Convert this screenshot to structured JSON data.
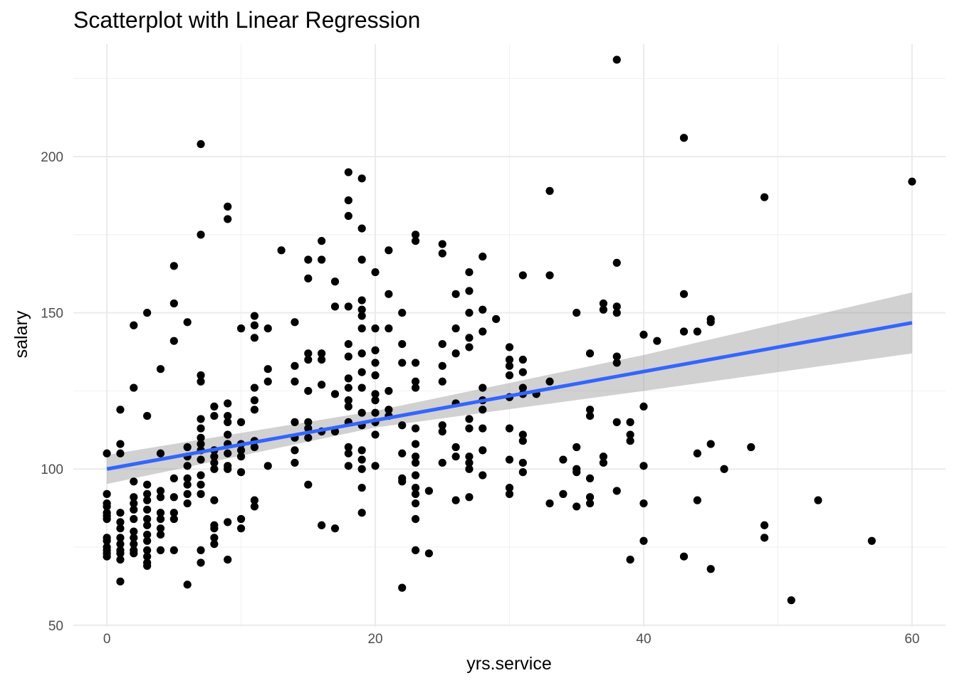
{
  "chart_data": {
    "type": "scatter",
    "title": "Scatterplot with Linear Regression",
    "xlabel": "yrs.service",
    "ylabel": "salary",
    "xlim": [
      -2.5,
      62.5
    ],
    "ylim": [
      49.5,
      236
    ],
    "x_ticks": [
      0,
      20,
      40,
      60
    ],
    "y_ticks": [
      50,
      100,
      150,
      200
    ],
    "grid": true,
    "point_color": "#000000",
    "regression": {
      "x0": 0,
      "y0": 100.0,
      "x1": 60,
      "y1": 146.8,
      "color": "#3366ff",
      "ci_band": [
        [
          0,
          95.2,
          104.5
        ],
        [
          20,
          113.3,
          118.6
        ],
        [
          40,
          125.0,
          136.5
        ],
        [
          60,
          137.0,
          156.5
        ]
      ],
      "ci_color": "#999999"
    },
    "points": [
      [
        0,
        105
      ],
      [
        0,
        92
      ],
      [
        0,
        89
      ],
      [
        0,
        88
      ],
      [
        0,
        86
      ],
      [
        0,
        85
      ],
      [
        0,
        84
      ],
      [
        0,
        78
      ],
      [
        0,
        77
      ],
      [
        0,
        75
      ],
      [
        0,
        74
      ],
      [
        0,
        73
      ],
      [
        0,
        72
      ],
      [
        1,
        119
      ],
      [
        1,
        108
      ],
      [
        1,
        105
      ],
      [
        1,
        86
      ],
      [
        1,
        83
      ],
      [
        1,
        81
      ],
      [
        1,
        78
      ],
      [
        1,
        76
      ],
      [
        1,
        74
      ],
      [
        1,
        73
      ],
      [
        1,
        71
      ],
      [
        1,
        64
      ],
      [
        2,
        146
      ],
      [
        2,
        126
      ],
      [
        2,
        96
      ],
      [
        2,
        91
      ],
      [
        2,
        89
      ],
      [
        2,
        87
      ],
      [
        2,
        84
      ],
      [
        2,
        80
      ],
      [
        2,
        78
      ],
      [
        2,
        76
      ],
      [
        2,
        74
      ],
      [
        2,
        73
      ],
      [
        3,
        150
      ],
      [
        3,
        117
      ],
      [
        3,
        95
      ],
      [
        3,
        92
      ],
      [
        3,
        90
      ],
      [
        3,
        87
      ],
      [
        3,
        84
      ],
      [
        3,
        82
      ],
      [
        3,
        79
      ],
      [
        3,
        77
      ],
      [
        3,
        74
      ],
      [
        3,
        72
      ],
      [
        3,
        70
      ],
      [
        3,
        69
      ],
      [
        4,
        132
      ],
      [
        4,
        105
      ],
      [
        4,
        93
      ],
      [
        4,
        91
      ],
      [
        4,
        86
      ],
      [
        4,
        84
      ],
      [
        4,
        81
      ],
      [
        4,
        79
      ],
      [
        4,
        74
      ],
      [
        5,
        165
      ],
      [
        5,
        153
      ],
      [
        5,
        141
      ],
      [
        5,
        97
      ],
      [
        5,
        91
      ],
      [
        5,
        86
      ],
      [
        5,
        84
      ],
      [
        5,
        74
      ],
      [
        6,
        147
      ],
      [
        6,
        107
      ],
      [
        6,
        104
      ],
      [
        6,
        101
      ],
      [
        6,
        97
      ],
      [
        6,
        95
      ],
      [
        6,
        92
      ],
      [
        6,
        89
      ],
      [
        6,
        63
      ],
      [
        7,
        204
      ],
      [
        7,
        175
      ],
      [
        7,
        130
      ],
      [
        7,
        128
      ],
      [
        7,
        116
      ],
      [
        7,
        113
      ],
      [
        7,
        110
      ],
      [
        7,
        108
      ],
      [
        7,
        106
      ],
      [
        7,
        103
      ],
      [
        7,
        98
      ],
      [
        7,
        95
      ],
      [
        7,
        92
      ],
      [
        7,
        74
      ],
      [
        7,
        70
      ],
      [
        8,
        120
      ],
      [
        8,
        117
      ],
      [
        8,
        106
      ],
      [
        8,
        104
      ],
      [
        8,
        102
      ],
      [
        8,
        100
      ],
      [
        8,
        90
      ],
      [
        8,
        82
      ],
      [
        8,
        81
      ],
      [
        8,
        78
      ],
      [
        8,
        76
      ],
      [
        9,
        184
      ],
      [
        9,
        180
      ],
      [
        9,
        121
      ],
      [
        9,
        117
      ],
      [
        9,
        115
      ],
      [
        9,
        111
      ],
      [
        9,
        108
      ],
      [
        9,
        105
      ],
      [
        9,
        101
      ],
      [
        9,
        100
      ],
      [
        9,
        83
      ],
      [
        9,
        71
      ],
      [
        10,
        145
      ],
      [
        10,
        115
      ],
      [
        10,
        108
      ],
      [
        10,
        106
      ],
      [
        10,
        104
      ],
      [
        10,
        99
      ],
      [
        10,
        84
      ],
      [
        10,
        81
      ],
      [
        11,
        149
      ],
      [
        11,
        146
      ],
      [
        11,
        142
      ],
      [
        11,
        126
      ],
      [
        11,
        122
      ],
      [
        11,
        119
      ],
      [
        11,
        109
      ],
      [
        11,
        107
      ],
      [
        11,
        90
      ],
      [
        11,
        88
      ],
      [
        12,
        145
      ],
      [
        12,
        132
      ],
      [
        12,
        128
      ],
      [
        12,
        101
      ],
      [
        13,
        170
      ],
      [
        14,
        147
      ],
      [
        14,
        133
      ],
      [
        14,
        128
      ],
      [
        14,
        115
      ],
      [
        14,
        110
      ],
      [
        14,
        106
      ],
      [
        14,
        102
      ],
      [
        15,
        167
      ],
      [
        15,
        161
      ],
      [
        15,
        137
      ],
      [
        15,
        135
      ],
      [
        15,
        125
      ],
      [
        15,
        115
      ],
      [
        15,
        113
      ],
      [
        15,
        110
      ],
      [
        15,
        95
      ],
      [
        16,
        173
      ],
      [
        16,
        167
      ],
      [
        16,
        137
      ],
      [
        16,
        135
      ],
      [
        16,
        127
      ],
      [
        16,
        112
      ],
      [
        16,
        82
      ],
      [
        17,
        160
      ],
      [
        17,
        152
      ],
      [
        17,
        124
      ],
      [
        17,
        112
      ],
      [
        17,
        81
      ],
      [
        18,
        195
      ],
      [
        18,
        186
      ],
      [
        18,
        181
      ],
      [
        18,
        152
      ],
      [
        18,
        140
      ],
      [
        18,
        136
      ],
      [
        18,
        129
      ],
      [
        18,
        126
      ],
      [
        18,
        122
      ],
      [
        18,
        120
      ],
      [
        18,
        115
      ],
      [
        18,
        107
      ],
      [
        18,
        105
      ],
      [
        18,
        101
      ],
      [
        19,
        193
      ],
      [
        19,
        177
      ],
      [
        19,
        167
      ],
      [
        19,
        154
      ],
      [
        19,
        151
      ],
      [
        19,
        149
      ],
      [
        19,
        145
      ],
      [
        19,
        137
      ],
      [
        19,
        131
      ],
      [
        19,
        126
      ],
      [
        19,
        118
      ],
      [
        19,
        114
      ],
      [
        19,
        106
      ],
      [
        19,
        103
      ],
      [
        19,
        100
      ],
      [
        19,
        94
      ],
      [
        19,
        86
      ],
      [
        20,
        163
      ],
      [
        20,
        145
      ],
      [
        20,
        138
      ],
      [
        20,
        134
      ],
      [
        20,
        130
      ],
      [
        20,
        124
      ],
      [
        20,
        122
      ],
      [
        20,
        118
      ],
      [
        20,
        115
      ],
      [
        20,
        111
      ],
      [
        20,
        101
      ],
      [
        21,
        170
      ],
      [
        21,
        156
      ],
      [
        21,
        145
      ],
      [
        21,
        125
      ],
      [
        21,
        119
      ],
      [
        21,
        117
      ],
      [
        22,
        150
      ],
      [
        22,
        140
      ],
      [
        22,
        134
      ],
      [
        22,
        114
      ],
      [
        22,
        105
      ],
      [
        22,
        97
      ],
      [
        22,
        96
      ],
      [
        22,
        62
      ],
      [
        23,
        175
      ],
      [
        23,
        173
      ],
      [
        23,
        134
      ],
      [
        23,
        128
      ],
      [
        23,
        126
      ],
      [
        23,
        113
      ],
      [
        23,
        108
      ],
      [
        23,
        104
      ],
      [
        23,
        102
      ],
      [
        23,
        98
      ],
      [
        23,
        94
      ],
      [
        23,
        92
      ],
      [
        23,
        89
      ],
      [
        23,
        84
      ],
      [
        23,
        74
      ],
      [
        24,
        93
      ],
      [
        24,
        73
      ],
      [
        25,
        172
      ],
      [
        25,
        169
      ],
      [
        25,
        140
      ],
      [
        25,
        133
      ],
      [
        25,
        128
      ],
      [
        25,
        114
      ],
      [
        25,
        112
      ],
      [
        25,
        102
      ],
      [
        26,
        156
      ],
      [
        26,
        145
      ],
      [
        26,
        137
      ],
      [
        26,
        121
      ],
      [
        26,
        107
      ],
      [
        26,
        104
      ],
      [
        26,
        90
      ],
      [
        27,
        163
      ],
      [
        27,
        157
      ],
      [
        27,
        150
      ],
      [
        27,
        142
      ],
      [
        27,
        139
      ],
      [
        27,
        116
      ],
      [
        27,
        113
      ],
      [
        27,
        104
      ],
      [
        27,
        102
      ],
      [
        27,
        100
      ],
      [
        27,
        91
      ],
      [
        28,
        168
      ],
      [
        28,
        151
      ],
      [
        28,
        144
      ],
      [
        28,
        126
      ],
      [
        28,
        122
      ],
      [
        28,
        119
      ],
      [
        28,
        113
      ],
      [
        28,
        106
      ],
      [
        28,
        98
      ],
      [
        29,
        148
      ],
      [
        30,
        139
      ],
      [
        30,
        135
      ],
      [
        30,
        133
      ],
      [
        30,
        130
      ],
      [
        30,
        123
      ],
      [
        30,
        113
      ],
      [
        30,
        103
      ],
      [
        30,
        94
      ],
      [
        30,
        92
      ],
      [
        31,
        162
      ],
      [
        31,
        135
      ],
      [
        31,
        131
      ],
      [
        31,
        126
      ],
      [
        31,
        124
      ],
      [
        31,
        111
      ],
      [
        31,
        109
      ],
      [
        31,
        102
      ],
      [
        31,
        99
      ],
      [
        32,
        124
      ],
      [
        33,
        189
      ],
      [
        33,
        162
      ],
      [
        33,
        128
      ],
      [
        33,
        89
      ],
      [
        34,
        103
      ],
      [
        34,
        92
      ],
      [
        35,
        150
      ],
      [
        35,
        107
      ],
      [
        35,
        100
      ],
      [
        35,
        99
      ],
      [
        35,
        88
      ],
      [
        36,
        137
      ],
      [
        36,
        119
      ],
      [
        36,
        117
      ],
      [
        36,
        97
      ],
      [
        36,
        91
      ],
      [
        36,
        89
      ],
      [
        37,
        153
      ],
      [
        37,
        151
      ],
      [
        37,
        104
      ],
      [
        37,
        102
      ],
      [
        38,
        231
      ],
      [
        38,
        166
      ],
      [
        38,
        152
      ],
      [
        38,
        150
      ],
      [
        38,
        136
      ],
      [
        38,
        134
      ],
      [
        38,
        115
      ],
      [
        38,
        93
      ],
      [
        39,
        115
      ],
      [
        39,
        111
      ],
      [
        39,
        109
      ],
      [
        39,
        71
      ],
      [
        40,
        143
      ],
      [
        40,
        120
      ],
      [
        40,
        101
      ],
      [
        40,
        89
      ],
      [
        40,
        77
      ],
      [
        41,
        141
      ],
      [
        43,
        206
      ],
      [
        43,
        156
      ],
      [
        43,
        144
      ],
      [
        43,
        72
      ],
      [
        44,
        144
      ],
      [
        44,
        105
      ],
      [
        44,
        90
      ],
      [
        45,
        148
      ],
      [
        45,
        147
      ],
      [
        45,
        108
      ],
      [
        45,
        68
      ],
      [
        46,
        100
      ],
      [
        48,
        107
      ],
      [
        49,
        187
      ],
      [
        49,
        82
      ],
      [
        49,
        78
      ],
      [
        51,
        58
      ],
      [
        53,
        90
      ],
      [
        57,
        77
      ],
      [
        60,
        192
      ]
    ]
  }
}
